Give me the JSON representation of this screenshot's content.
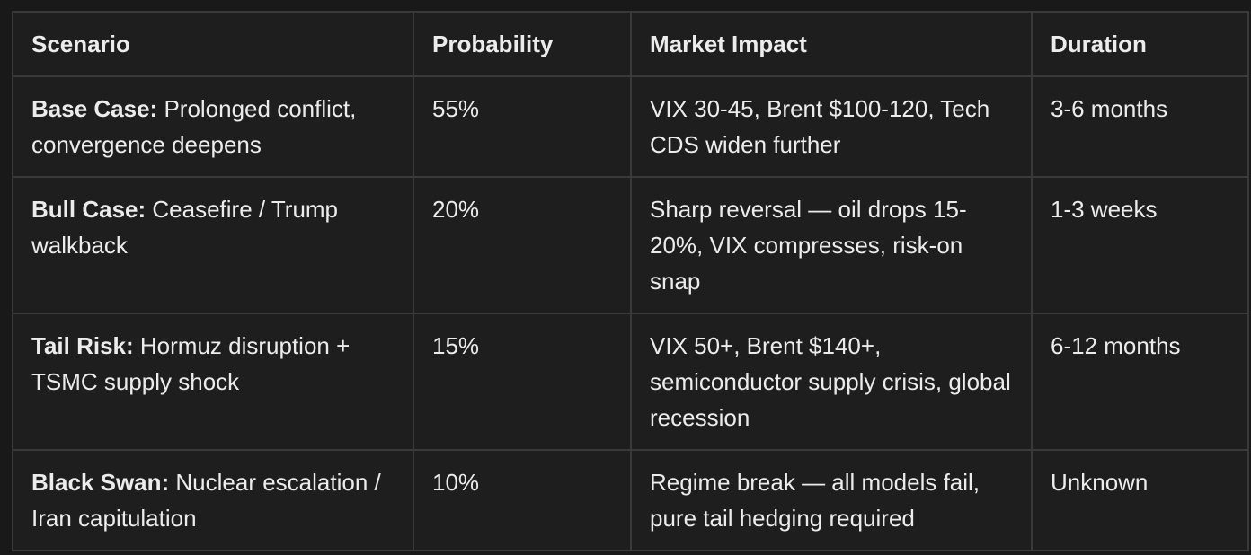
{
  "table": {
    "headers": [
      "Scenario",
      "Probability",
      "Market Impact",
      "Duration"
    ],
    "rows": [
      {
        "scenario_label": "Base Case:",
        "scenario_text": "Prolonged conflict, convergence deepens",
        "probability": "55%",
        "impact": "VIX 30-45, Brent $100-120, Tech CDS widen further",
        "duration": "3-6 months"
      },
      {
        "scenario_label": "Bull Case:",
        "scenario_text": "Ceasefire / Trump walkback",
        "probability": "20%",
        "impact": "Sharp reversal — oil drops 15-20%, VIX compresses, risk-on snap",
        "duration": "1-3 weeks"
      },
      {
        "scenario_label": "Tail Risk:",
        "scenario_text": "Hormuz disruption + TSMC supply shock",
        "probability": "15%",
        "impact": "VIX 50+, Brent $140+, semiconductor supply crisis, global recession",
        "duration": "6-12 months"
      },
      {
        "scenario_label": "Black Swan:",
        "scenario_text": "Nuclear escalation / Iran capitulation",
        "probability": "10%",
        "impact": "Regime break — all models fail, pure tail hedging required",
        "duration": "Unknown"
      }
    ]
  }
}
